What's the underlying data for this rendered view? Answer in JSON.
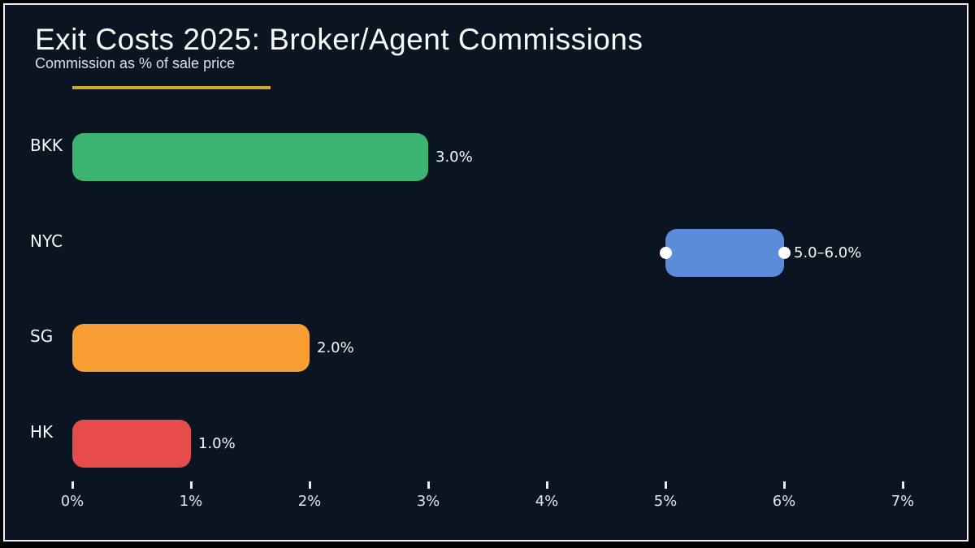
{
  "header": {
    "title": "Exit Costs 2025: Broker/Agent Commissions",
    "subtitle": "Commission as % of sale price"
  },
  "chart_data": {
    "type": "bar",
    "orientation": "horizontal",
    "title": "Exit Costs 2025: Broker/Agent Commissions",
    "subtitle": "Commission as % of sale price",
    "xlabel": "",
    "ylabel": "",
    "xlim": [
      0,
      7
    ],
    "x_tick_labels": [
      "0%",
      "1%",
      "2%",
      "3%",
      "4%",
      "5%",
      "6%",
      "7%"
    ],
    "x_tick_values": [
      0,
      1,
      2,
      3,
      4,
      5,
      6,
      7
    ],
    "grid": false,
    "legend": false,
    "categories": [
      "BKK",
      "NYC",
      "SG",
      "HK"
    ],
    "bars": [
      {
        "category": "BKK",
        "start": 0.0,
        "end": 3.0,
        "value_label": "3.0%",
        "color": "#3cb371",
        "range_markers": false
      },
      {
        "category": "NYC",
        "start": 5.0,
        "end": 6.0,
        "value_label": "5.0–6.0%",
        "color": "#5b8cda",
        "range_markers": true
      },
      {
        "category": "SG",
        "start": 0.0,
        "end": 2.0,
        "value_label": "2.0%",
        "color": "#f99d35",
        "range_markers": false
      },
      {
        "category": "HK",
        "start": 0.0,
        "end": 1.0,
        "value_label": "1.0%",
        "color": "#e64c4c",
        "range_markers": false
      }
    ],
    "colors": {
      "background": "#0a1521",
      "frame_border": "#ededed",
      "accent_rule": "#d4a62f",
      "text": "#f5f8fa",
      "marker": "#ffffff"
    }
  }
}
